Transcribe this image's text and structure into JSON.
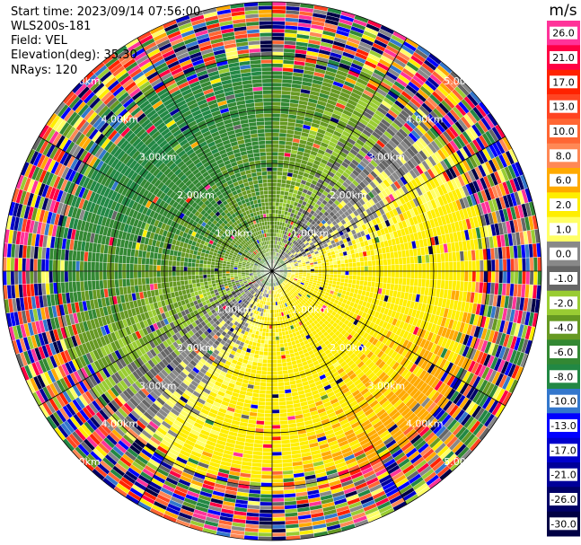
{
  "header": {
    "start_time": "Start time: 2023/09/14 07:56:00",
    "instrument": "WLS200s-181",
    "field": "Field: VEL",
    "elevation": "Elevation(deg): 35.30",
    "nrays": "NRays: 120"
  },
  "chart_data": {
    "type": "heatmap",
    "projection": "polar-ppi",
    "field": "VEL",
    "units": "m/s",
    "range_rings_km": [
      1.0,
      2.0,
      3.0,
      4.0,
      5.0
    ],
    "range_ring_labels": [
      "1.00km",
      "2.00km",
      "3.00km",
      "4.00km",
      "5.00km"
    ],
    "max_range_km": 5.0,
    "n_rays": 120,
    "spokes_deg": [
      0,
      30,
      60,
      90,
      120,
      150,
      180,
      210,
      240,
      270,
      300,
      330
    ],
    "colorbar": {
      "title": "m/s",
      "tick_labels": [
        "26.0",
        "21.0",
        "17.0",
        "13.0",
        "10.0",
        "8.0",
        "6.0",
        "2.0",
        "1.0",
        "0.0",
        "-1.0",
        "-2.0",
        "-4.0",
        "-6.0",
        "-8.0",
        "-10.0",
        "-13.0",
        "-17.0",
        "-21.0",
        "-26.0",
        "-30.0"
      ],
      "colors": [
        "#ff3399",
        "#ff0044",
        "#ff2200",
        "#ff4422",
        "#ff6633",
        "#ff8855",
        "#ffaa00",
        "#ffee00",
        "#ffff66",
        "#888888",
        "#666666",
        "#99cc33",
        "#669922",
        "#338833",
        "#228844",
        "#3377cc",
        "#0000ff",
        "#0000cc",
        "#000099",
        "#000066",
        "#000044"
      ]
    },
    "velocity_pattern": {
      "inner_negative_azimuth_deg": 225,
      "inner_positive_azimuth_deg": 45,
      "noisy_beyond_km": 3.6
    }
  }
}
